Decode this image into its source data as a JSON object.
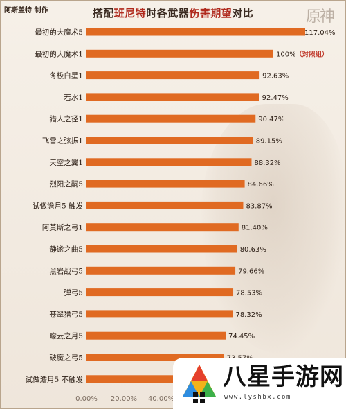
{
  "header": {
    "author": "阿斯盖特 制作",
    "title_parts": [
      "搭配",
      "班尼特",
      "时各武器",
      "伤害期望",
      "对比"
    ],
    "logo_text": "原神"
  },
  "chart_data": {
    "type": "bar",
    "orientation": "horizontal",
    "title": "搭配班尼特时各武器伤害期望对比",
    "categories": [
      "最初的大魔术5",
      "最初的大魔术1",
      "冬极白星1",
      "若水1",
      "猎人之径1",
      "飞雷之弦振1",
      "天空之翼1",
      "烈阳之嗣5",
      "试做澹月5 触发",
      "阿莫斯之弓1",
      "静谧之曲5",
      "黑岩战弓5",
      "弹弓5",
      "苍翠猎弓5",
      "曚云之月5",
      "破魔之弓5",
      "试做澹月5 不触发"
    ],
    "values": [
      117.04,
      100,
      92.63,
      92.47,
      90.47,
      89.15,
      88.32,
      84.66,
      83.87,
      81.4,
      80.63,
      79.66,
      78.53,
      78.32,
      74.45,
      73.57,
      71.5
    ],
    "value_labels": [
      "117.04%",
      "100%",
      "92.63%",
      "92.47%",
      "90.47%",
      "89.15%",
      "88.32%",
      "84.66%",
      "83.87%",
      "81.40%",
      "80.63%",
      "79.66%",
      "78.53%",
      "78.32%",
      "74.45%",
      "73.57%",
      ""
    ],
    "annotations": [
      {
        "index": 1,
        "text": "（对照组）"
      }
    ],
    "xlim": [
      0,
      120
    ],
    "x_ticks": [
      0,
      20,
      40
    ],
    "x_tick_labels": [
      "0.00%",
      "20.00%",
      "40.00%"
    ],
    "bar_color": "#e06a22",
    "annotation_color": "#c0392b",
    "grid": false
  },
  "watermark": {
    "text": "八星手游网",
    "url": "www.lyshbx.com"
  }
}
